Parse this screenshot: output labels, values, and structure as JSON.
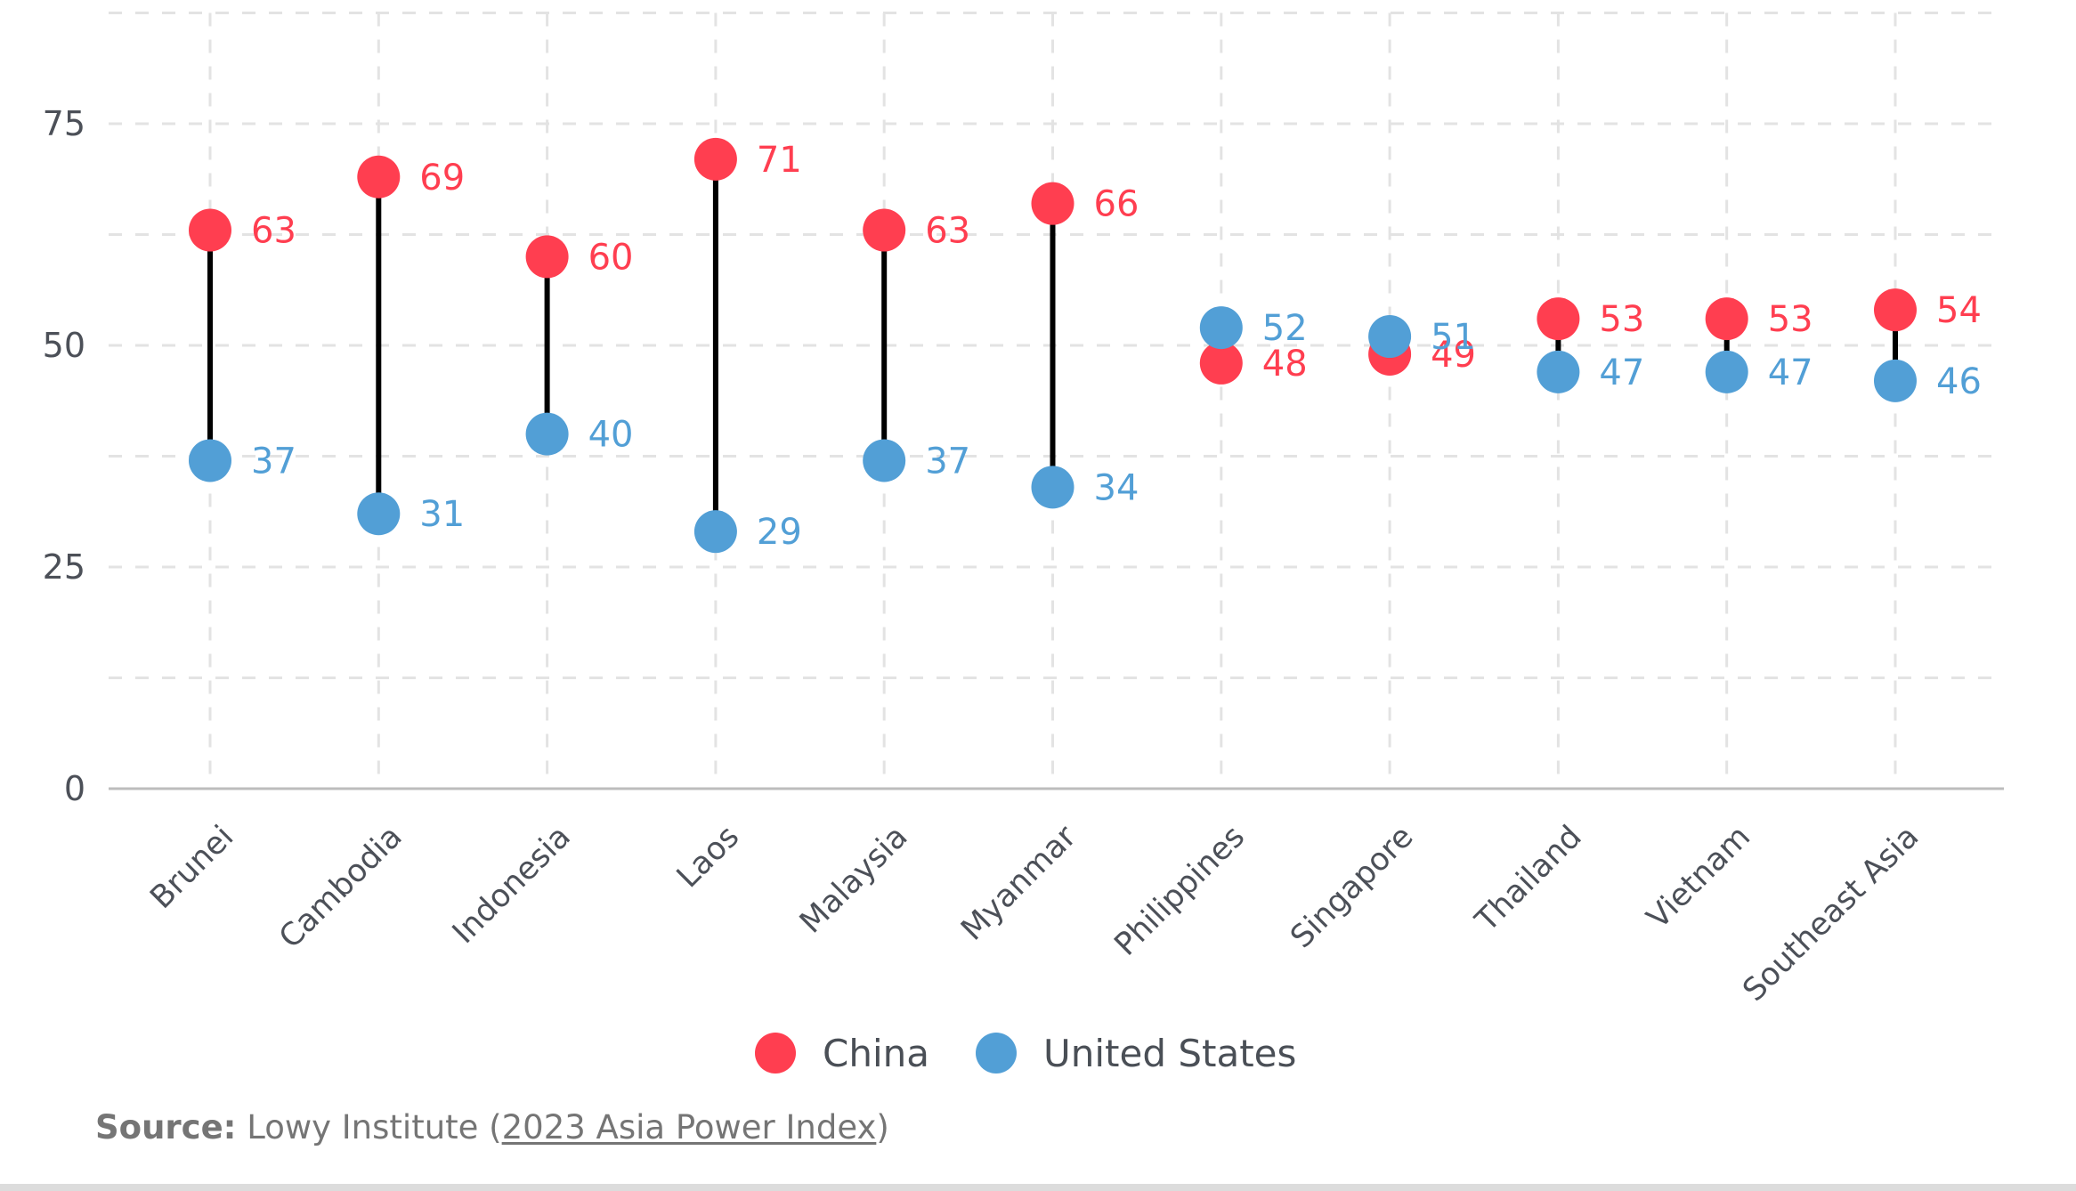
{
  "chart_data": {
    "type": "dumbbell",
    "title": "",
    "xlabel": "",
    "ylabel": "",
    "ylim": [
      0,
      87.5
    ],
    "y_ticks": [
      0,
      25,
      50,
      75
    ],
    "y_tick_labels": [
      "0",
      "25",
      "50",
      "75"
    ],
    "y_gridlines": [
      0,
      12.5,
      25,
      37.5,
      50,
      62.5,
      75,
      87.5
    ],
    "grid": true,
    "categories": [
      "Brunei",
      "Cambodia",
      "Indonesia",
      "Laos",
      "Malaysia",
      "Myanmar",
      "Philippines",
      "Singapore",
      "Thailand",
      "Vietnam",
      "Southeast Asia"
    ],
    "series": [
      {
        "name": "China",
        "color": "#FF3E50",
        "values": [
          63,
          69,
          60,
          71,
          63,
          66,
          48,
          49,
          53,
          53,
          54
        ]
      },
      {
        "name": "United States",
        "color": "#529FD6",
        "values": [
          37,
          31,
          40,
          29,
          37,
          34,
          52,
          51,
          47,
          47,
          46
        ]
      }
    ],
    "connector_color": "#000000",
    "legend": {
      "placement": "bottom-center",
      "entries": [
        "China",
        "United States"
      ]
    }
  },
  "source": {
    "label": "Source:",
    "text_before": " Lowy Institute (",
    "link_text": "2023 Asia Power Index",
    "text_after": ")"
  }
}
